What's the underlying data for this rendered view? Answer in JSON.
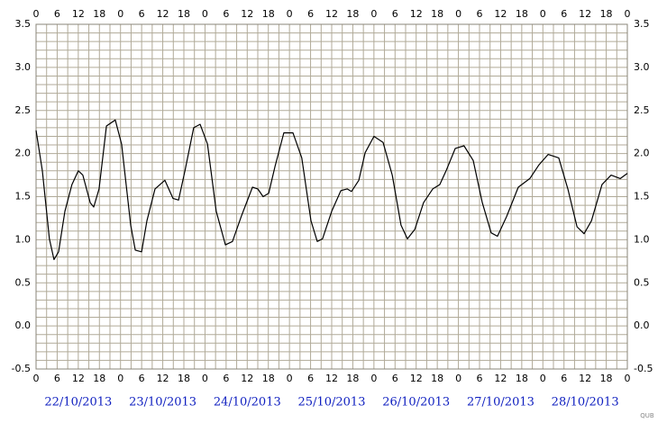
{
  "chart_data": {
    "type": "line",
    "x": [
      0,
      1.8,
      3.8,
      5.1,
      6.4,
      8.2,
      10.2,
      12,
      13.3,
      15.4,
      16.4,
      17.9,
      20,
      22.5,
      24.3,
      26.9,
      28.2,
      30,
      31.5,
      33.8,
      36.6,
      38.9,
      40.5,
      42.3,
      44.8,
      46.6,
      48.7,
      51.2,
      53.8,
      55.8,
      58.4,
      61.5,
      63,
      64.5,
      66.1,
      67.9,
      70.4,
      73,
      75.5,
      78.1,
      79.9,
      81.4,
      84,
      86.6,
      88.4,
      89.6,
      91.7,
      93.5,
      96,
      98.6,
      101.2,
      103.7,
      105.5,
      107.6,
      110.1,
      112.7,
      114.7,
      116.5,
      119.1,
      121.6,
      124.2,
      126.8,
      129.3,
      131.1,
      133.7,
      137,
      140.3,
      142.9,
      145.5,
      148.5,
      151.1,
      153.7,
      155.7,
      157.8,
      160.8,
      163.4,
      166,
      168
    ],
    "series": [
      {
        "color": "#000000",
        "values": [
          2.27,
          1.8,
          1.01,
          0.77,
          0.86,
          1.33,
          1.64,
          1.8,
          1.75,
          1.43,
          1.38,
          1.59,
          2.32,
          2.39,
          2.11,
          1.17,
          0.88,
          0.86,
          1.22,
          1.59,
          1.69,
          1.48,
          1.46,
          1.8,
          2.3,
          2.34,
          2.11,
          1.33,
          0.94,
          0.98,
          1.28,
          1.61,
          1.59,
          1.5,
          1.54,
          1.85,
          2.24,
          2.24,
          1.95,
          1.22,
          0.98,
          1.01,
          1.33,
          1.57,
          1.59,
          1.56,
          1.69,
          2.01,
          2.2,
          2.13,
          1.75,
          1.17,
          1.01,
          1.12,
          1.43,
          1.59,
          1.64,
          1.8,
          2.06,
          2.09,
          1.92,
          1.43,
          1.08,
          1.04,
          1.27,
          1.61,
          1.71,
          1.87,
          1.99,
          1.95,
          1.59,
          1.15,
          1.07,
          1.22,
          1.64,
          1.75,
          1.71,
          1.77
        ]
      }
    ],
    "xlim": [
      0,
      168
    ],
    "xticks": [
      0,
      6,
      12,
      18,
      {
        "value": 24,
        "label": "0"
      },
      {
        "value": 30,
        "label": "6"
      },
      {
        "value": 36,
        "label": "12"
      },
      {
        "value": 42,
        "label": "18"
      },
      {
        "value": 48,
        "label": "0"
      },
      {
        "value": 54,
        "label": "6"
      },
      {
        "value": 60,
        "label": "12"
      },
      {
        "value": 66,
        "label": "18"
      },
      {
        "value": 72,
        "label": "0"
      },
      {
        "value": 78,
        "label": "6"
      },
      {
        "value": 84,
        "label": "12"
      },
      {
        "value": 90,
        "label": "18"
      },
      {
        "value": 96,
        "label": "0"
      },
      {
        "value": 102,
        "label": "6"
      },
      {
        "value": 108,
        "label": "12"
      },
      {
        "value": 114,
        "label": "18"
      },
      {
        "value": 120,
        "label": "0"
      },
      {
        "value": 126,
        "label": "6"
      },
      {
        "value": 132,
        "label": "12"
      },
      {
        "value": 138,
        "label": "18"
      },
      {
        "value": 144,
        "label": "0"
      },
      {
        "value": 150,
        "label": "6"
      },
      {
        "value": 156,
        "label": "12"
      },
      {
        "value": 162,
        "label": "18"
      },
      {
        "value": 168,
        "label": "0"
      }
    ],
    "ylim": [
      -0.5,
      3.5
    ],
    "yticks": [
      3.5,
      {
        "value": 3,
        "label": "3.0"
      },
      2.5,
      {
        "value": 2,
        "label": "2.0"
      },
      1.5,
      {
        "value": 1,
        "label": "1.0"
      },
      0.5,
      {
        "value": 0,
        "label": "0.0"
      },
      -0.5
    ],
    "grid": true,
    "date_labels": [
      "22/10/2013",
      "23/10/2013",
      "24/10/2013",
      "25/10/2013",
      "26/10/2013",
      "27/10/2013",
      "28/10/2013"
    ],
    "credit": "QUB"
  }
}
